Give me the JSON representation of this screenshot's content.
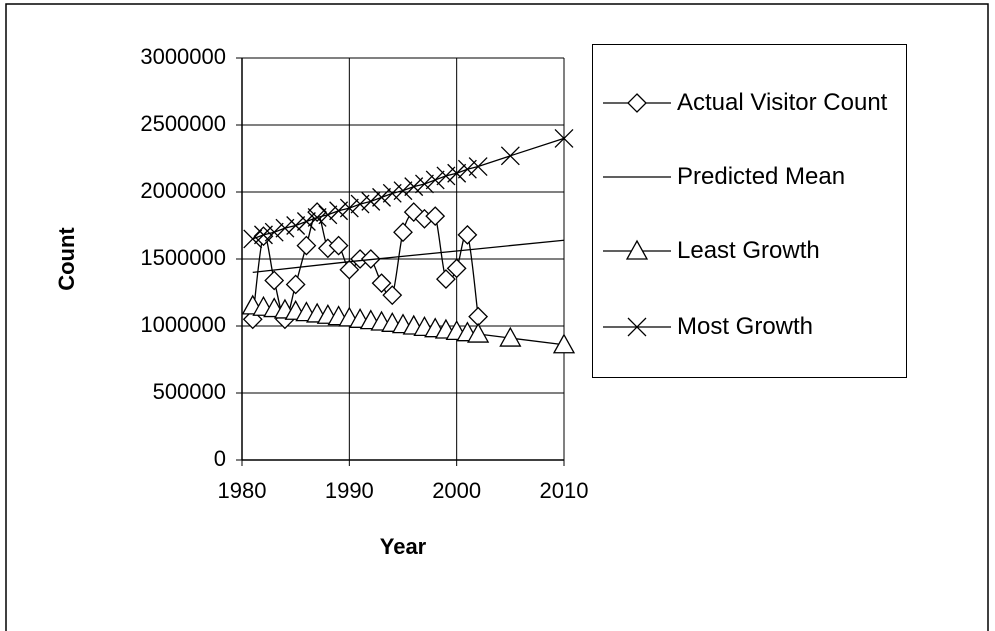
{
  "chart_data": {
    "type": "line",
    "xlabel": "Year",
    "ylabel": "Count",
    "xlim": [
      1980,
      2010
    ],
    "xticks": [
      1980,
      1990,
      2000,
      2010
    ],
    "ylim": [
      0,
      3000000
    ],
    "yticks": [
      0,
      500000,
      1000000,
      1500000,
      2000000,
      2500000,
      3000000
    ],
    "grid": true,
    "legend": "right",
    "series": [
      {
        "name": "Actual Visitor Count",
        "color": "#000000",
        "marker": "diamond",
        "smooth": true,
        "x": [
          1981,
          1982,
          1983,
          1984,
          1985,
          1986,
          1987,
          1988,
          1989,
          1990,
          1991,
          1992,
          1993,
          1994,
          1995,
          1996,
          1997,
          1998,
          1999,
          2000,
          2001,
          2002
        ],
        "values": [
          1050000,
          1670000,
          1340000,
          1050000,
          1310000,
          1600000,
          1850000,
          1580000,
          1600000,
          1420000,
          1500000,
          1500000,
          1320000,
          1230000,
          1700000,
          1850000,
          1800000,
          1820000,
          1350000,
          1430000,
          1680000,
          1070000
        ]
      },
      {
        "name": "Predicted Mean",
        "color": "#000000",
        "marker": "none",
        "smooth": false,
        "x": [
          1981,
          1990,
          2000,
          2010
        ],
        "values": [
          1400000,
          1480000,
          1560000,
          1640000
        ]
      },
      {
        "name": "Least Growth",
        "color": "#000000",
        "marker": "triangle",
        "smooth": false,
        "x": [
          1981,
          1982,
          1983,
          1984,
          1985,
          1986,
          1987,
          1988,
          1989,
          1990,
          1991,
          1992,
          1993,
          1994,
          1995,
          1996,
          1997,
          1998,
          1999,
          2000,
          2001,
          2002,
          2005,
          2010
        ],
        "values": [
          1150000,
          1140000,
          1130000,
          1120000,
          1110000,
          1100000,
          1090000,
          1080000,
          1070000,
          1060000,
          1050000,
          1040000,
          1030000,
          1020000,
          1010000,
          1000000,
          990000,
          980000,
          970000,
          960000,
          950000,
          940000,
          910000,
          860000
        ]
      },
      {
        "name": "Most Growth",
        "color": "#000000",
        "marker": "x",
        "smooth": false,
        "x": [
          1981,
          1982,
          1983,
          1984,
          1985,
          1986,
          1987,
          1988,
          1989,
          1990,
          1991,
          1992,
          1993,
          1994,
          1995,
          1996,
          1997,
          1998,
          1999,
          2000,
          2001,
          2002,
          2005,
          2010
        ],
        "values": [
          1650000,
          1680000,
          1700000,
          1730000,
          1750000,
          1780000,
          1810000,
          1830000,
          1860000,
          1880000,
          1910000,
          1930000,
          1960000,
          1990000,
          2010000,
          2040000,
          2060000,
          2090000,
          2120000,
          2140000,
          2170000,
          2190000,
          2270000,
          2400000
        ]
      }
    ]
  }
}
